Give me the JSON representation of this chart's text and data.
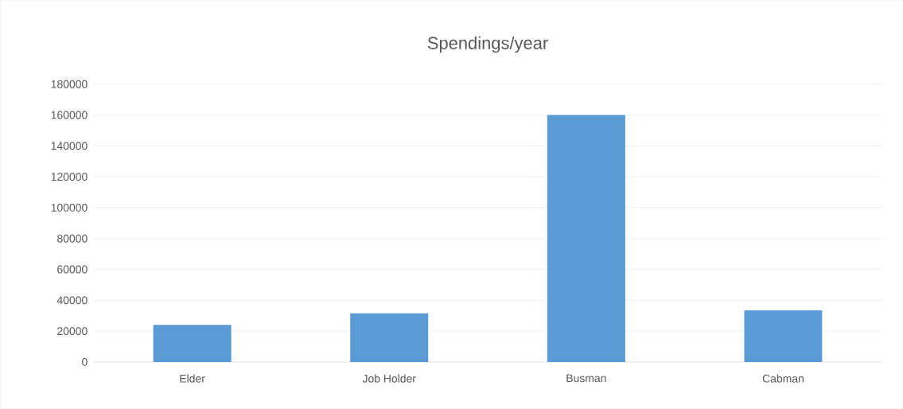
{
  "chart_data": {
    "type": "bar",
    "title": "Spendings/year",
    "categories": [
      "Elder",
      "Job Holder",
      "Busman",
      "Cabman"
    ],
    "values": [
      24000,
      31500,
      160000,
      33500
    ],
    "color": "#5b9bd5",
    "ylim": [
      0,
      180000
    ],
    "yticks": [
      0,
      20000,
      40000,
      60000,
      80000,
      100000,
      120000,
      140000,
      160000,
      180000
    ],
    "grid": "y"
  }
}
